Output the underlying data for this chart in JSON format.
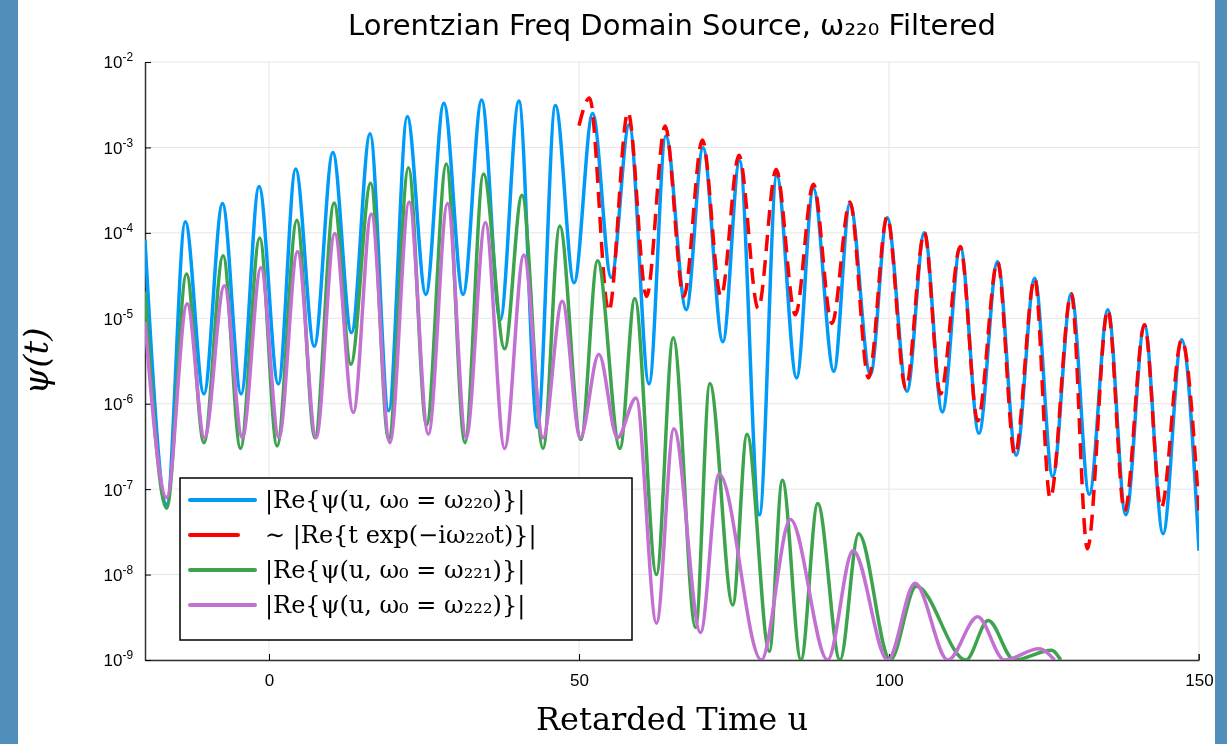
{
  "chart_data": {
    "type": "line",
    "title": "Lorentzian Freq Domain Source, ω₂₂₀ Filtered",
    "xlabel": "Retarded Time u",
    "ylabel": "ψ(t)",
    "log": "y",
    "grid": true,
    "legend": "bottom left",
    "marker": "none",
    "xlim": [
      -20,
      150
    ],
    "xticks": [
      0,
      50,
      100,
      150
    ],
    "ylim": [
      1e-09,
      0.01
    ],
    "yticks": [
      {
        "value": 1e-09,
        "label": "10$^{-9}$"
      },
      {
        "value": 1e-08,
        "label": "10$^{-8}$"
      },
      {
        "value": 1e-07,
        "label": "10$^{-7}$"
      },
      {
        "value": 1e-06,
        "label": "10$^{-6}$"
      },
      {
        "value": 1e-05,
        "label": "10$^{-5}$"
      },
      {
        "value": 0.0001,
        "label": "10$^{-4}$"
      },
      {
        "value": 0.001,
        "label": "10$^{-3}$"
      },
      {
        "value": 0.01,
        "label": "10$^{-2}$"
      }
    ],
    "series": [
      {
        "name": "|Re{ψ(u, ω₀ = ω₂₂₀)}|",
        "color": "#009af9",
        "line_style": "solid",
        "x": [
          -20,
          -16.5,
          -13.5,
          -10.5,
          -7.5,
          -4.5,
          -1.6,
          1.5,
          4.3,
          7.3,
          10.3,
          13.3,
          16.3,
          19.3,
          22.3,
          25.3,
          28.2,
          31.3,
          34.3,
          37.3,
          40.3,
          43.3,
          46.2,
          49.2,
          52.2,
          55.2,
          58.1,
          61.3,
          64.0,
          67.3,
          70.0,
          73.2,
          75.9,
          79.1,
          81.9,
          85.1,
          87.8,
          91.1,
          93.7,
          97.0,
          99.7,
          102.9,
          105.7,
          108.6,
          111.5,
          114.5,
          117.5,
          120.5,
          123.5,
          126.4,
          129.4,
          132.3,
          135.3,
          138.2,
          141.2,
          144.2,
          147.2,
          150
        ],
        "values": [
          8.3e-05,
          6.6e-08,
          0.000135,
          1.3e-06,
          0.00022,
          1.3e-06,
          0.00035,
          1.7e-06,
          0.00056,
          4.7e-06,
          0.00087,
          6.8e-06,
          0.00145,
          8.3e-07,
          0.0023,
          1.9e-05,
          0.0033,
          1.9e-05,
          0.0036,
          9.6e-06,
          0.0035,
          5.3e-07,
          0.0031,
          2.6e-05,
          0.0025,
          3e-05,
          0.00185,
          1.7e-06,
          0.00136,
          1.26e-05,
          0.00099,
          5.3e-06,
          0.0007,
          5e-08,
          0.00047,
          2e-06,
          0.00033,
          2.4e-06,
          0.00022,
          2.2e-06,
          0.00015,
          1.4e-06,
          0.0001,
          8e-07,
          6.8e-05,
          4.5e-07,
          4.6e-05,
          2.5e-07,
          2.95e-05,
          1.4e-07,
          1.94e-05,
          8.7e-08,
          1.26e-05,
          5e-08,
          8.4e-06,
          3e-08,
          5.6e-06,
          1.9e-08
        ]
      },
      {
        "name": "∼ |Re{t exp(−iω₂₂₀t)}|",
        "color": "#ff0000",
        "line_style": "dashed",
        "x": [
          50,
          51.7,
          54.8,
          57.9,
          60.9,
          63.9,
          66.9,
          69.9,
          72.9,
          75.8,
          78.9,
          81.8,
          84.9,
          87.8,
          90.8,
          93.7,
          96.7,
          99.7,
          102.7,
          105.7,
          108.3,
          111.5,
          114.3,
          117.5,
          120.3,
          123.5,
          126.0,
          129.4,
          132.0,
          135.3,
          138.0,
          141.2,
          143.9,
          147.2,
          150
        ],
        "values": [
          0.0018,
          0.0038,
          1.2e-05,
          0.0026,
          1.8e-05,
          0.00178,
          1.8e-05,
          0.00122,
          1.8e-05,
          0.00081,
          1.3e-05,
          0.00055,
          1.1e-05,
          0.00037,
          8.7e-06,
          0.00023,
          2e-06,
          0.000155,
          1.5e-06,
          0.000102,
          1.3e-06,
          6.9e-05,
          6.3e-07,
          4.6e-05,
          2.5e-07,
          2.95e-05,
          7.8e-08,
          1.94e-05,
          2e-08,
          1.26e-05,
          5.5e-08,
          8.4e-06,
          6e-08,
          5.6e-06,
          5.6e-08
        ]
      },
      {
        "name": "|Re{ψ(u, ω₀ = ω₂₂₁)}|",
        "color": "#3da44d",
        "line_style": "solid",
        "x": [
          -20,
          -16.5,
          -13.3,
          -10.5,
          -7.4,
          -4.6,
          -1.5,
          1.3,
          4.5,
          7.4,
          10.5,
          13.2,
          16.4,
          19.3,
          22.5,
          25.4,
          28.6,
          31.6,
          34.6,
          38.0,
          40.8,
          44.2,
          46.9,
          50.3,
          53.0,
          56.6,
          59.0,
          62.5,
          65.2,
          68.8,
          71.1,
          74.8,
          77.1,
          80.7,
          82.8,
          85.8,
          88.5,
          92.1,
          95.1,
          100.2,
          104.4,
          112.4,
          116.0,
          120.2,
          126.2,
          127.7
        ],
        "values": [
          2.05e-05,
          6e-08,
          3.3e-05,
          3.5e-07,
          5.4e-05,
          3e-07,
          8.7e-05,
          3.2e-07,
          0.00014,
          4e-07,
          0.000224,
          2.9e-06,
          0.00038,
          3.8e-07,
          0.00058,
          5.6e-07,
          0.00064,
          3.5e-07,
          0.00049,
          4.4e-06,
          0.000275,
          3e-07,
          0.00012,
          3.8e-07,
          4.7e-05,
          3e-07,
          1.7e-05,
          1e-08,
          5.9e-06,
          2.4e-09,
          1.73e-06,
          4.4e-09,
          4.4e-07,
          1.26e-09,
          1.27e-07,
          1e-09,
          6.8e-08,
          1e-09,
          3e-08,
          1e-09,
          7.3e-09,
          1e-09,
          2.9e-09,
          1e-09,
          1.3e-09,
          1e-09
        ]
      },
      {
        "name": "|Re{ψ(u, ω₀ = ω₂₂₂)}|",
        "color": "#c271d2",
        "line_style": "solid",
        "x": [
          -20,
          -16.5,
          -13.2,
          -10.4,
          -7.2,
          -4.3,
          -1.3,
          1.6,
          4.6,
          7.6,
          10.6,
          13.6,
          16.5,
          19.5,
          22.6,
          25.7,
          28.8,
          31.8,
          34.9,
          38.0,
          41.1,
          44.2,
          47.3,
          50.2,
          53.2,
          56.2,
          59.2,
          62.5,
          65.3,
          69.6,
          72.6,
          79.4,
          84.1,
          90.1,
          94.2,
          99.8,
          104.2,
          109.5,
          114.3,
          118.6,
          124.2,
          126.7
        ],
        "values": [
          9.1e-06,
          8e-08,
          1.48e-05,
          4e-07,
          2.4e-05,
          4e-07,
          3.9e-05,
          4e-07,
          6e-05,
          4e-07,
          9.8e-05,
          7.9e-07,
          0.000166,
          3.5e-07,
          0.00023,
          4.4e-07,
          0.00022,
          4e-07,
          0.000132,
          3e-07,
          5.5e-05,
          4e-07,
          1.58e-05,
          4e-07,
          3.8e-06,
          4e-07,
          1.17e-06,
          2.7e-09,
          5.1e-07,
          2.1e-09,
          1.5e-07,
          1e-09,
          4.4e-08,
          1e-09,
          1.9e-08,
          1e-09,
          7.9e-09,
          1e-09,
          3.2e-09,
          1e-09,
          1.35e-09,
          1e-09
        ]
      }
    ]
  }
}
